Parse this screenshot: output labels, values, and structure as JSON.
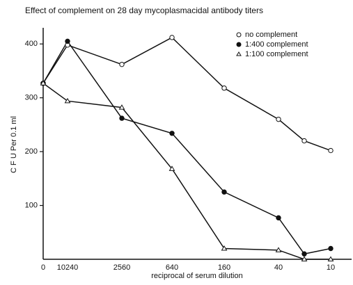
{
  "chart_data": {
    "type": "line",
    "title": "Effect of complement on 28 day mycoplasmacidal antibody titers",
    "x_label": "reciprocal of serum dilution",
    "y_label": "C F U Per 0.1 ml",
    "categories": [
      "0",
      "10240",
      "2560",
      "640",
      "160",
      "40",
      null,
      "10"
    ],
    "series": [
      {
        "name": "no complement",
        "color": "#111111",
        "marker": "open-circle",
        "values": [
          327,
          398,
          362,
          412,
          318,
          260,
          220,
          202
        ]
      },
      {
        "name": "1:400 complement",
        "color": "#111111",
        "marker": "filled-circle",
        "values": [
          327,
          405,
          262,
          234,
          125,
          77,
          10,
          20
        ]
      },
      {
        "name": "1:100 complement",
        "color": "#111111",
        "marker": "triangle",
        "values": [
          327,
          294,
          282,
          168,
          20,
          17,
          0,
          0
        ]
      }
    ],
    "ylim": [
      0,
      430
    ],
    "yticks": [
      100,
      200,
      300,
      400
    ],
    "legend": "upper right"
  }
}
